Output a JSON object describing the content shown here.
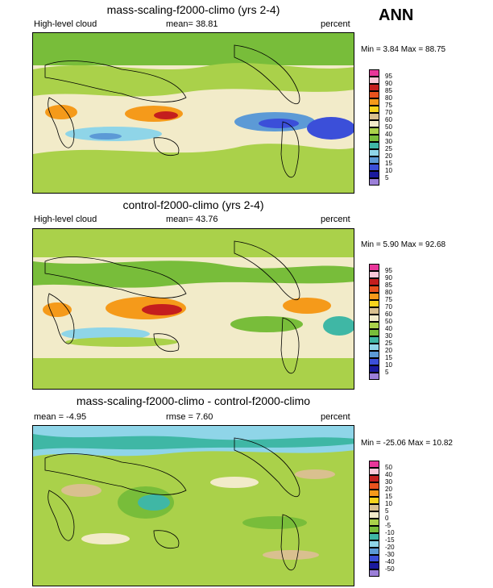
{
  "season": "ANN",
  "panels": [
    {
      "title": "mass-scaling-f2000-climo (yrs 2-4)",
      "left_label": "High-level cloud",
      "center_label": "mean=  38.81",
      "right_label": "percent",
      "minmax": "Min =   3.84 Max =  88.75",
      "legend": {
        "levels": [
          "95",
          "90",
          "85",
          "80",
          "75",
          "70",
          "60",
          "50",
          "40",
          "30",
          "25",
          "20",
          "15",
          "10",
          "5"
        ],
        "colors": [
          "#e8379a",
          "#f9c7d7",
          "#c41e1e",
          "#e8521e",
          "#f59a1a",
          "#f7d31c",
          "#d9c08f",
          "#f2ebc9",
          "#aad14a",
          "#78bd3a",
          "#3fb7a5",
          "#8fd5e8",
          "#5c9ad6",
          "#3b4fd9",
          "#1a1a9e",
          "#9b7fd8"
        ]
      }
    },
    {
      "title": "control-f2000-climo (yrs 2-4)",
      "left_label": "High-level cloud",
      "center_label": "mean=  43.76",
      "right_label": "percent",
      "minmax": "Min =   5.90 Max =  92.68",
      "legend": {
        "levels": [
          "95",
          "90",
          "85",
          "80",
          "75",
          "70",
          "60",
          "50",
          "40",
          "30",
          "25",
          "20",
          "15",
          "10",
          "5"
        ],
        "colors": [
          "#e8379a",
          "#f9c7d7",
          "#c41e1e",
          "#e8521e",
          "#f59a1a",
          "#f7d31c",
          "#d9c08f",
          "#f2ebc9",
          "#aad14a",
          "#78bd3a",
          "#3fb7a5",
          "#8fd5e8",
          "#5c9ad6",
          "#3b4fd9",
          "#1a1a9e",
          "#9b7fd8"
        ]
      }
    },
    {
      "title": "mass-scaling-f2000-climo - control-f2000-climo",
      "left_label": "mean =  -4.95",
      "center_label": "rmse =   7.60",
      "right_label": "percent",
      "minmax": "Min = -25.06 Max =  10.82",
      "legend": {
        "levels": [
          "50",
          "40",
          "30",
          "20",
          "15",
          "10",
          "5",
          "0",
          "-5",
          "-10",
          "-15",
          "-20",
          "-30",
          "-40",
          "-50"
        ],
        "colors": [
          "#e8379a",
          "#f9c7d7",
          "#c41e1e",
          "#e8521e",
          "#f59a1a",
          "#f7d31c",
          "#d9c08f",
          "#f2ebc9",
          "#aad14a",
          "#78bd3a",
          "#3fb7a5",
          "#8fd5e8",
          "#5c9ad6",
          "#3b4fd9",
          "#1a1a9e",
          "#9b7fd8"
        ]
      }
    }
  ],
  "chart_data": [
    {
      "type": "heatmap",
      "title": "mass-scaling-f2000-climo (yrs 2-4)",
      "variable": "High-level cloud",
      "units": "percent",
      "mean": 38.81,
      "min": 3.84,
      "max": 88.75,
      "levels": [
        5,
        10,
        15,
        20,
        25,
        30,
        40,
        50,
        60,
        70,
        75,
        80,
        85,
        90,
        95
      ]
    },
    {
      "type": "heatmap",
      "title": "control-f2000-climo (yrs 2-4)",
      "variable": "High-level cloud",
      "units": "percent",
      "mean": 43.76,
      "min": 5.9,
      "max": 92.68,
      "levels": [
        5,
        10,
        15,
        20,
        25,
        30,
        40,
        50,
        60,
        70,
        75,
        80,
        85,
        90,
        95
      ]
    },
    {
      "type": "heatmap",
      "title": "mass-scaling-f2000-climo - control-f2000-climo",
      "units": "percent",
      "mean": -4.95,
      "rmse": 7.6,
      "min": -25.06,
      "max": 10.82,
      "levels": [
        -50,
        -40,
        -30,
        -20,
        -15,
        -10,
        -5,
        0,
        5,
        10,
        15,
        20,
        30,
        40,
        50
      ]
    }
  ]
}
